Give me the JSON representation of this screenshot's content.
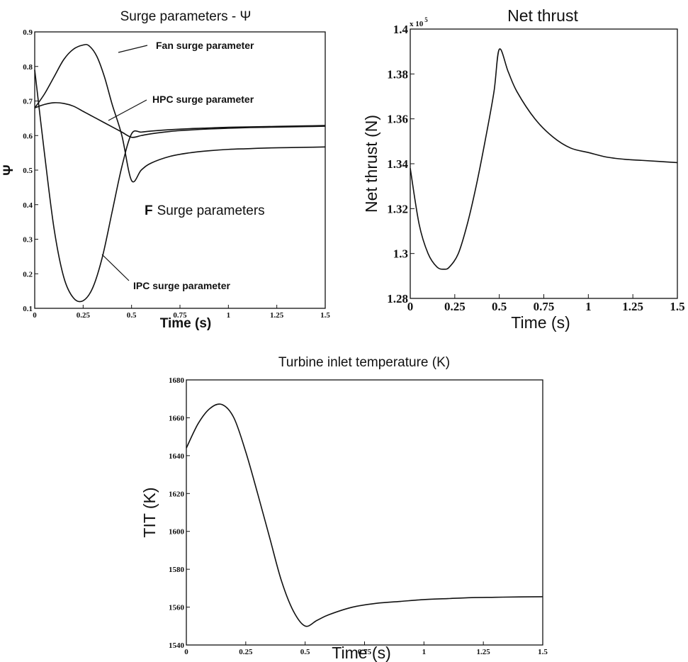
{
  "chart_data": [
    {
      "type": "line",
      "title": "Surge parameters - Ψ",
      "xlabel": "Time (s)",
      "ylabel": "Ψ",
      "xlim": [
        0,
        1.5
      ],
      "ylim": [
        0.1,
        0.9
      ],
      "xticks": [
        "0",
        "0.25",
        "0.5",
        "0.75",
        "1",
        "1.25",
        "1.5"
      ],
      "yticks": [
        "0.1",
        "0.2",
        "0.3",
        "0.4",
        "0.5",
        "0.6",
        "0.7",
        "0.8",
        "0.9"
      ],
      "annotation": {
        "marker": "F",
        "text": "Surge parameters"
      },
      "series": [
        {
          "name": "Fan surge parameter",
          "x": [
            0,
            0.05,
            0.1,
            0.15,
            0.2,
            0.25,
            0.28,
            0.32,
            0.36,
            0.4,
            0.45,
            0.5,
            0.55,
            0.6,
            0.7,
            0.8,
            0.9,
            1.0,
            1.1,
            1.2,
            1.3,
            1.4,
            1.5
          ],
          "y": [
            0.68,
            0.72,
            0.77,
            0.82,
            0.85,
            0.862,
            0.86,
            0.83,
            0.77,
            0.69,
            0.6,
            0.47,
            0.5,
            0.52,
            0.54,
            0.55,
            0.556,
            0.56,
            0.562,
            0.564,
            0.565,
            0.566,
            0.567
          ]
        },
        {
          "name": "HPC surge parameter",
          "x": [
            0,
            0.05,
            0.1,
            0.15,
            0.2,
            0.25,
            0.3,
            0.35,
            0.4,
            0.45,
            0.5,
            0.55,
            0.6,
            0.7,
            0.8,
            0.9,
            1.0,
            1.1,
            1.2,
            1.3,
            1.4,
            1.5
          ],
          "y": [
            0.68,
            0.69,
            0.695,
            0.693,
            0.685,
            0.67,
            0.655,
            0.64,
            0.625,
            0.61,
            0.595,
            0.6,
            0.605,
            0.612,
            0.616,
            0.619,
            0.621,
            0.623,
            0.624,
            0.625,
            0.626,
            0.627
          ]
        },
        {
          "name": "IPC surge parameter",
          "x": [
            0,
            0.05,
            0.1,
            0.15,
            0.2,
            0.25,
            0.3,
            0.35,
            0.4,
            0.45,
            0.5,
            0.55,
            0.6,
            0.7,
            0.8,
            0.9,
            1.0,
            1.1,
            1.2,
            1.3,
            1.4,
            1.5
          ],
          "y": [
            0.79,
            0.55,
            0.33,
            0.19,
            0.13,
            0.122,
            0.16,
            0.25,
            0.38,
            0.51,
            0.605,
            0.61,
            0.613,
            0.617,
            0.62,
            0.622,
            0.624,
            0.625,
            0.626,
            0.627,
            0.628,
            0.629
          ]
        }
      ]
    },
    {
      "type": "line",
      "title": "Net thrust",
      "xlabel": "Time (s)",
      "ylabel": "Net thrust (N)",
      "y_scale_label": "x 10",
      "y_scale_exponent": "5",
      "xlim": [
        0,
        1.5
      ],
      "ylim": [
        1.28,
        1.4
      ],
      "xticks": [
        "0",
        "0.25",
        "0.5",
        "0.75",
        "1",
        "1.25",
        "1.5"
      ],
      "yticks": [
        "1.28",
        "1.3",
        "1.32",
        "1.34",
        "1.36",
        "1.38",
        "1.4"
      ],
      "series": [
        {
          "x": [
            0,
            0.05,
            0.1,
            0.15,
            0.19,
            0.22,
            0.27,
            0.32,
            0.37,
            0.42,
            0.47,
            0.5,
            0.55,
            0.6,
            0.7,
            0.8,
            0.9,
            1.0,
            1.1,
            1.2,
            1.3,
            1.4,
            1.5
          ],
          "y": [
            1.338,
            1.313,
            1.3,
            1.294,
            1.293,
            1.294,
            1.3,
            1.313,
            1.33,
            1.35,
            1.372,
            1.391,
            1.381,
            1.372,
            1.36,
            1.352,
            1.347,
            1.345,
            1.343,
            1.342,
            1.3415,
            1.341,
            1.3405
          ]
        }
      ]
    },
    {
      "type": "line",
      "title": "Turbine inlet temperature (K)",
      "xlabel": "Time (s)",
      "ylabel": "TIT (K)",
      "xlim": [
        0,
        1.5
      ],
      "ylim": [
        1540,
        1680
      ],
      "xticks": [
        "0",
        "0.25",
        "0.5",
        "0.75",
        "1",
        "1.25",
        "1.5"
      ],
      "yticks": [
        "1540",
        "1560",
        "1580",
        "1600",
        "1620",
        "1640",
        "1660",
        "1680"
      ],
      "series": [
        {
          "x": [
            0,
            0.05,
            0.1,
            0.15,
            0.2,
            0.25,
            0.3,
            0.35,
            0.4,
            0.45,
            0.5,
            0.55,
            0.6,
            0.7,
            0.8,
            0.9,
            1.0,
            1.1,
            1.2,
            1.3,
            1.4,
            1.5
          ],
          "y": [
            1644,
            1657,
            1665,
            1667,
            1660,
            1642,
            1620,
            1597,
            1574,
            1558,
            1550,
            1553,
            1556,
            1560,
            1562,
            1563,
            1564,
            1564.5,
            1565,
            1565.2,
            1565.4,
            1565.5
          ]
        }
      ]
    }
  ]
}
